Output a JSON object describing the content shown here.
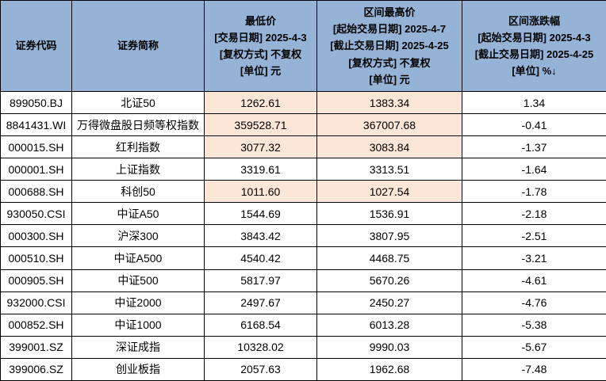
{
  "colors": {
    "header_bg": "#95B3D7",
    "highlight_bg": "#FCE6D8",
    "row_bg": "#FFFFFF",
    "border": "#000000",
    "text": "#000000"
  },
  "table": {
    "headers": {
      "code": "证券代码",
      "name": "证券简称",
      "low": [
        "最低价",
        "[交易日期] 2025-4-3",
        "[复权方式] 不复权",
        "[单位] 元"
      ],
      "high": [
        "区间最高价",
        "[起始交易日期] 2025-4-7",
        "[截止交易日期] 2025-4-25",
        "[复权方式] 不复权",
        "[单位] 元"
      ],
      "pct": [
        "区间涨跌幅",
        "[起始交易日期] 2025-4-3",
        "[截止交易日期] 2025-4-25",
        "[单位] %↓"
      ]
    },
    "sort_indicator": "↓",
    "rows": [
      {
        "code": "899050.BJ",
        "name": "北证50",
        "low": "1262.61",
        "high": "1383.34",
        "pct": "1.34",
        "highlight": true
      },
      {
        "code": "8841431.WI",
        "name": "万得微盘股日频等权指数",
        "low": "359528.71",
        "high": "367007.68",
        "pct": "-0.41",
        "highlight": true
      },
      {
        "code": "000015.SH",
        "name": "红利指数",
        "low": "3077.32",
        "high": "3083.84",
        "pct": "-1.37",
        "highlight": true
      },
      {
        "code": "000001.SH",
        "name": "上证指数",
        "low": "3319.61",
        "high": "3313.51",
        "pct": "-1.64",
        "highlight": false
      },
      {
        "code": "000688.SH",
        "name": "科创50",
        "low": "1011.60",
        "high": "1027.54",
        "pct": "-1.78",
        "highlight": true
      },
      {
        "code": "930050.CSI",
        "name": "中证A50",
        "low": "1544.69",
        "high": "1536.91",
        "pct": "-2.18",
        "highlight": false
      },
      {
        "code": "000300.SH",
        "name": "沪深300",
        "low": "3843.42",
        "high": "3807.95",
        "pct": "-2.51",
        "highlight": false
      },
      {
        "code": "000510.SH",
        "name": "中证A500",
        "low": "4540.42",
        "high": "4468.75",
        "pct": "-3.21",
        "highlight": false
      },
      {
        "code": "000905.SH",
        "name": "中证500",
        "low": "5817.97",
        "high": "5670.26",
        "pct": "-4.61",
        "highlight": false
      },
      {
        "code": "932000.CSI",
        "name": "中证2000",
        "low": "2497.67",
        "high": "2450.27",
        "pct": "-4.76",
        "highlight": false
      },
      {
        "code": "000852.SH",
        "name": "中证1000",
        "low": "6168.54",
        "high": "6013.28",
        "pct": "-5.38",
        "highlight": false
      },
      {
        "code": "399001.SZ",
        "name": "深证成指",
        "low": "10328.02",
        "high": "9990.03",
        "pct": "-5.67",
        "highlight": false
      },
      {
        "code": "399006.SZ",
        "name": "创业板指",
        "low": "2057.63",
        "high": "1962.68",
        "pct": "-7.48",
        "highlight": false
      }
    ]
  },
  "chart_data": {
    "type": "table",
    "title": "",
    "columns": [
      "证券代码",
      "证券简称",
      "最低价 [交易日期] 2025-4-3 [复权方式] 不复权 [单位] 元",
      "区间最高价 [起始交易日期] 2025-4-7 [截止交易日期] 2025-4-25 [复权方式] 不复权 [单位] 元",
      "区间涨跌幅 [起始交易日期] 2025-4-3 [截止交易日期] 2025-4-25 [单位] %↓"
    ],
    "sorted_by": "区间涨跌幅 descending",
    "highlight_rule": "rows where 区间最高价 > 最低价 have peach background in price columns",
    "rows": [
      [
        "899050.BJ",
        "北证50",
        1262.61,
        1383.34,
        1.34
      ],
      [
        "8841431.WI",
        "万得微盘股日频等权指数",
        359528.71,
        367007.68,
        -0.41
      ],
      [
        "000015.SH",
        "红利指数",
        3077.32,
        3083.84,
        -1.37
      ],
      [
        "000001.SH",
        "上证指数",
        3319.61,
        3313.51,
        -1.64
      ],
      [
        "000688.SH",
        "科创50",
        1011.6,
        1027.54,
        -1.78
      ],
      [
        "930050.CSI",
        "中证A50",
        1544.69,
        1536.91,
        -2.18
      ],
      [
        "000300.SH",
        "沪深300",
        3843.42,
        3807.95,
        -2.51
      ],
      [
        "000510.SH",
        "中证A500",
        4540.42,
        4468.75,
        -3.21
      ],
      [
        "000905.SH",
        "中证500",
        5817.97,
        5670.26,
        -4.61
      ],
      [
        "932000.CSI",
        "中证2000",
        2497.67,
        2450.27,
        -4.76
      ],
      [
        "000852.SH",
        "中证1000",
        6168.54,
        6013.28,
        -5.38
      ],
      [
        "399001.SZ",
        "深证成指",
        10328.02,
        9990.03,
        -5.67
      ],
      [
        "399006.SZ",
        "创业板指",
        2057.63,
        1962.68,
        -7.48
      ]
    ]
  }
}
